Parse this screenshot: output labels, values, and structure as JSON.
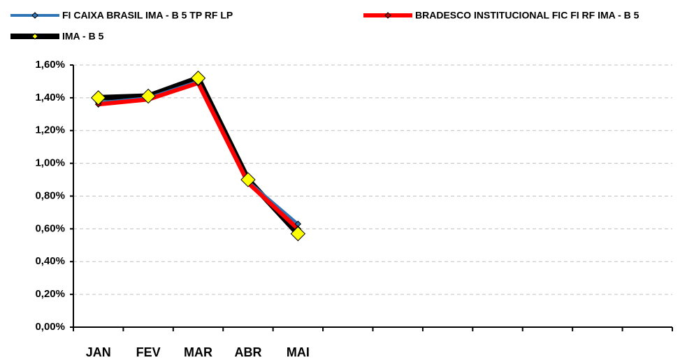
{
  "chart_data": {
    "type": "line",
    "categories": [
      "JAN",
      "FEV",
      "MAR",
      "ABR",
      "MAI",
      null,
      null,
      null,
      null,
      null,
      null,
      null
    ],
    "series": [
      {
        "name": "FI CAIXA BRASIL IMA - B 5 TP RF LP",
        "color": "#2e75b6",
        "marker_color": "#2e75b6",
        "values": [
          1.37,
          1.4,
          1.5,
          0.89,
          0.63,
          null,
          null,
          null,
          null,
          null,
          null,
          null
        ]
      },
      {
        "name": "BRADESCO INSTITUCIONAL FIC FI RF IMA - B 5",
        "color": "#ff0000",
        "marker_color": "#c00000",
        "values": [
          1.36,
          1.39,
          1.49,
          0.88,
          0.6,
          null,
          null,
          null,
          null,
          null,
          null,
          null
        ]
      },
      {
        "name": "IMA - B 5",
        "color": "#000000",
        "marker_color": "#ffff00",
        "values": [
          1.4,
          1.41,
          1.52,
          0.9,
          0.57,
          null,
          null,
          null,
          null,
          null,
          null,
          null
        ]
      }
    ],
    "ylim": [
      0,
      1.6
    ],
    "yticks": [
      {
        "value": 0,
        "label": "0,00%"
      },
      {
        "value": 0.2,
        "label": "0,20%"
      },
      {
        "value": 0.4,
        "label": "0,40%"
      },
      {
        "value": 0.6,
        "label": "0,60%"
      },
      {
        "value": 0.8,
        "label": "0,80%"
      },
      {
        "value": 1.0,
        "label": "1,00%"
      },
      {
        "value": 1.2,
        "label": "1,20%"
      },
      {
        "value": 1.4,
        "label": "1,40%"
      },
      {
        "value": 1.6,
        "label": "1,60%"
      }
    ],
    "grid": true
  }
}
